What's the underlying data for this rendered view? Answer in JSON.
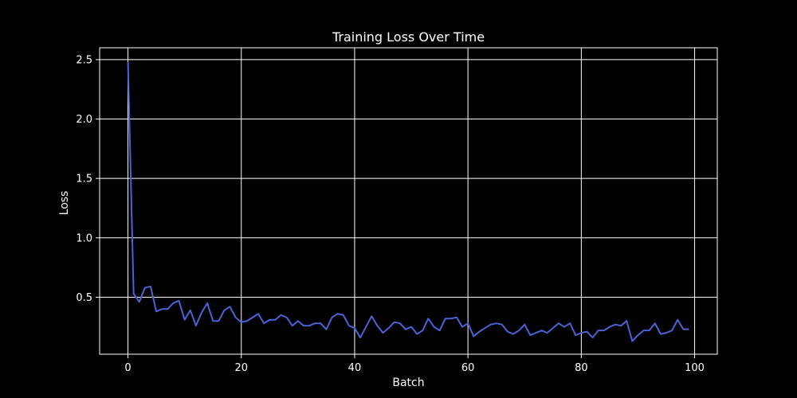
{
  "chart_data": {
    "type": "line",
    "title": "Training Loss Over Time",
    "xlabel": "Batch",
    "ylabel": "Loss",
    "xlim": [
      -5,
      104
    ],
    "ylim": [
      0.02,
      2.6
    ],
    "xticks": [
      0,
      20,
      40,
      60,
      80,
      100
    ],
    "yticks": [
      0.5,
      1.0,
      1.5,
      2.0,
      2.5
    ],
    "xtick_labels": [
      "0",
      "20",
      "40",
      "60",
      "80",
      "100"
    ],
    "ytick_labels": [
      "0.5",
      "1.0",
      "1.5",
      "2.0",
      "2.5"
    ],
    "grid": true,
    "series": [
      {
        "color": "#4a63d8",
        "x": [
          0,
          1,
          2,
          3,
          4,
          5,
          6,
          7,
          8,
          9,
          10,
          11,
          12,
          13,
          14,
          15,
          16,
          17,
          18,
          19,
          20,
          21,
          22,
          23,
          24,
          25,
          26,
          27,
          28,
          29,
          30,
          31,
          32,
          33,
          34,
          35,
          36,
          37,
          38,
          39,
          40,
          41,
          42,
          43,
          44,
          45,
          46,
          47,
          48,
          49,
          50,
          51,
          52,
          53,
          54,
          55,
          56,
          57,
          58,
          59,
          60,
          61,
          62,
          63,
          64,
          65,
          66,
          67,
          68,
          69,
          70,
          71,
          72,
          73,
          74,
          75,
          76,
          77,
          78,
          79,
          80,
          81,
          82,
          83,
          84,
          85,
          86,
          87,
          88,
          89,
          90,
          91,
          92,
          93,
          94,
          95,
          96,
          97,
          98,
          99
        ],
        "values": [
          2.48,
          0.53,
          0.46,
          0.58,
          0.59,
          0.38,
          0.4,
          0.4,
          0.45,
          0.47,
          0.31,
          0.39,
          0.26,
          0.37,
          0.45,
          0.3,
          0.3,
          0.39,
          0.42,
          0.33,
          0.29,
          0.3,
          0.33,
          0.36,
          0.28,
          0.31,
          0.31,
          0.35,
          0.33,
          0.26,
          0.3,
          0.26,
          0.26,
          0.28,
          0.28,
          0.23,
          0.33,
          0.36,
          0.35,
          0.26,
          0.24,
          0.16,
          0.25,
          0.34,
          0.26,
          0.2,
          0.24,
          0.29,
          0.28,
          0.23,
          0.25,
          0.19,
          0.22,
          0.32,
          0.25,
          0.22,
          0.32,
          0.32,
          0.33,
          0.25,
          0.28,
          0.17,
          0.21,
          0.24,
          0.27,
          0.28,
          0.27,
          0.21,
          0.19,
          0.22,
          0.27,
          0.18,
          0.2,
          0.22,
          0.2,
          0.24,
          0.28,
          0.25,
          0.28,
          0.18,
          0.2,
          0.21,
          0.16,
          0.22,
          0.22,
          0.25,
          0.27,
          0.26,
          0.3,
          0.13,
          0.18,
          0.22,
          0.22,
          0.28,
          0.19,
          0.2,
          0.22,
          0.31,
          0.23,
          0.23
        ]
      }
    ]
  }
}
